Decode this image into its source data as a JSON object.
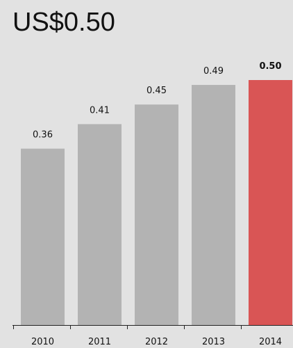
{
  "headline": "US$0.50",
  "colors": {
    "background": "#e2e2e2",
    "bar": "#b3b3b3",
    "highlight": "#d95555",
    "axis": "#222222",
    "text": "#111111"
  },
  "chart_data": {
    "type": "bar",
    "categories": [
      "2010",
      "2011",
      "2012",
      "2013",
      "2014"
    ],
    "values": [
      0.36,
      0.41,
      0.45,
      0.49,
      0.5
    ],
    "value_labels": [
      "0.36",
      "0.41",
      "0.45",
      "0.49",
      "0.50"
    ],
    "highlight_index": 4,
    "title": "",
    "xlabel": "",
    "ylabel": "",
    "ylim": [
      0,
      0.5
    ],
    "grid": false,
    "legend": "none"
  }
}
